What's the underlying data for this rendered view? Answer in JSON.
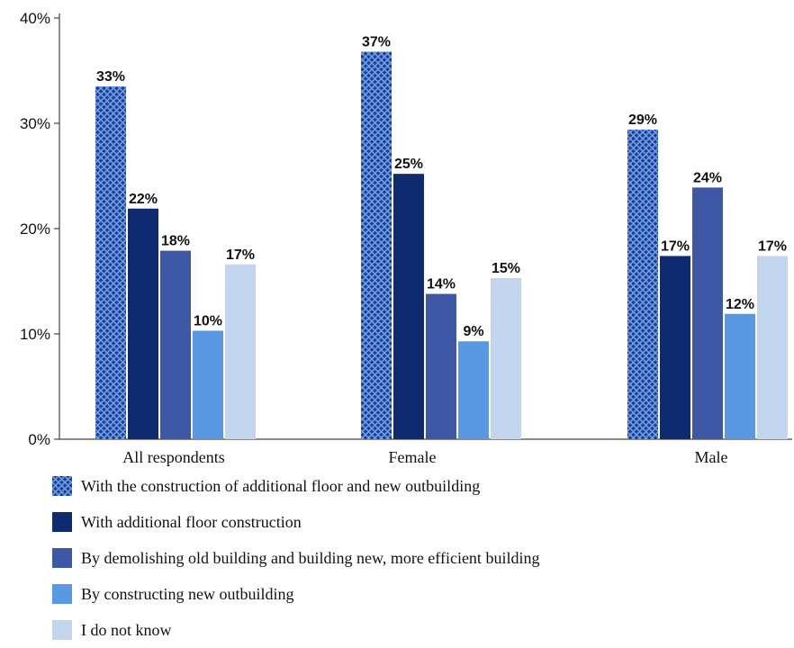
{
  "chart_data": {
    "type": "bar",
    "categories": [
      "All respondents",
      "Female",
      "Male"
    ],
    "series": [
      {
        "name": "With the construction of additional floor and new outbuilding",
        "values": [
          33.5,
          36.8,
          29.4
        ],
        "labels": [
          "33%",
          "37%",
          "29%"
        ],
        "color": "#3a6fd0",
        "pattern": "crosshatch"
      },
      {
        "name": "With additional floor construction",
        "values": [
          21.9,
          25.2,
          17.4
        ],
        "labels": [
          "22%",
          "25%",
          "17%"
        ],
        "color": "#0f2a6e"
      },
      {
        "name": "By demolishing old building and building new, more efficient building",
        "values": [
          17.9,
          13.8,
          23.9
        ],
        "labels": [
          "18%",
          "14%",
          "24%"
        ],
        "color": "#3f58a6"
      },
      {
        "name": "By constructing new outbuilding",
        "values": [
          10.3,
          9.3,
          11.9
        ],
        "labels": [
          "10%",
          "9%",
          "12%"
        ],
        "color": "#5a98e3"
      },
      {
        "name": "I do not know",
        "values": [
          16.6,
          15.3,
          17.4
        ],
        "labels": [
          "17%",
          "15%",
          "17%"
        ],
        "color": "#c2d5ec"
      }
    ],
    "yticks": [
      0,
      10,
      20,
      30,
      40
    ],
    "ytick_labels": [
      "0%",
      "10%",
      "20%",
      "30%",
      "40%"
    ],
    "ylim": [
      0,
      40
    ],
    "title": "",
    "xlabel": "",
    "ylabel": "",
    "grid": false,
    "legend": "bottom-left"
  }
}
